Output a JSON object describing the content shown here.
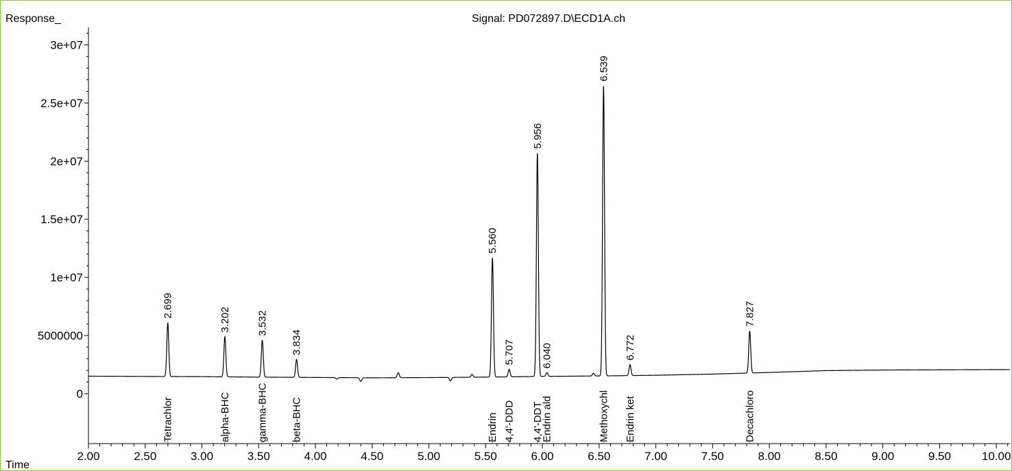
{
  "chart_data": {
    "type": "line",
    "title": "Signal: PD072897.D\\ECD1A.ch",
    "xlabel": "Time",
    "ylabel": "Response_",
    "xlim": [
      2.0,
      10.12
    ],
    "ylim": [
      -4300000,
      31500000
    ],
    "x_ticks": [
      "2.00",
      "2.50",
      "3.00",
      "3.50",
      "4.00",
      "4.50",
      "5.00",
      "5.50",
      "6.00",
      "6.50",
      "7.00",
      "7.50",
      "8.00",
      "8.50",
      "9.00",
      "9.50",
      "10.00"
    ],
    "y_ticks": [
      {
        "value": 0,
        "label": "0"
      },
      {
        "value": 5000000,
        "label": "5000000"
      },
      {
        "value": 10000000,
        "label": "1e+07"
      },
      {
        "value": 15000000,
        "label": "1.5e+07"
      },
      {
        "value": 20000000,
        "label": "2e+07"
      },
      {
        "value": 25000000,
        "label": "2.5e+07"
      },
      {
        "value": 30000000,
        "label": "3e+07"
      }
    ],
    "baseline": [
      [
        2.0,
        1500000
      ],
      [
        2.5,
        1480000
      ],
      [
        3.0,
        1460000
      ],
      [
        3.5,
        1420000
      ],
      [
        4.0,
        1390000
      ],
      [
        4.5,
        1360000
      ],
      [
        5.0,
        1380000
      ],
      [
        5.5,
        1420000
      ],
      [
        6.0,
        1480000
      ],
      [
        6.5,
        1520000
      ],
      [
        7.0,
        1580000
      ],
      [
        7.5,
        1680000
      ],
      [
        8.0,
        1820000
      ],
      [
        8.5,
        1980000
      ],
      [
        9.0,
        2030000
      ],
      [
        9.5,
        2050000
      ],
      [
        10.12,
        2070000
      ]
    ],
    "peaks": [
      {
        "rt": 2.699,
        "height": 6100000,
        "label": "2.699",
        "compound": "Tetrachlor"
      },
      {
        "rt": 3.202,
        "height": 4900000,
        "label": "3.202",
        "compound": "alpha-BHC"
      },
      {
        "rt": 3.532,
        "height": 4600000,
        "label": "3.532",
        "compound": "gamma-BHC"
      },
      {
        "rt": 3.834,
        "height": 2950000,
        "label": "3.834",
        "compound": "beta-BHC"
      },
      {
        "rt": 5.56,
        "height": 11700000,
        "label": "5.560",
        "compound": "Endrin"
      },
      {
        "rt": 5.707,
        "height": 2100000,
        "label": "5.707",
        "compound": "4,4'-DDD"
      },
      {
        "rt": 5.956,
        "height": 20700000,
        "label": "5.956",
        "compound": "4,4'-DDT"
      },
      {
        "rt": 6.04,
        "height": 1800000,
        "label": "6.040",
        "compound": "Endrin ald"
      },
      {
        "rt": 6.539,
        "height": 26500000,
        "label": "6.539",
        "compound": "Methoxychl"
      },
      {
        "rt": 6.772,
        "height": 2500000,
        "label": "6.772",
        "compound": "Endrin ket"
      },
      {
        "rt": 7.827,
        "height": 5400000,
        "label": "7.827",
        "compound": "Decachloro"
      }
    ],
    "minor_peaks": [
      [
        4.19,
        1250000
      ],
      [
        4.4,
        1050000
      ],
      [
        4.73,
        1800000
      ],
      [
        5.19,
        1100000
      ],
      [
        5.38,
        1650000
      ],
      [
        6.45,
        1750000
      ]
    ],
    "grid": false,
    "legend": "none"
  }
}
